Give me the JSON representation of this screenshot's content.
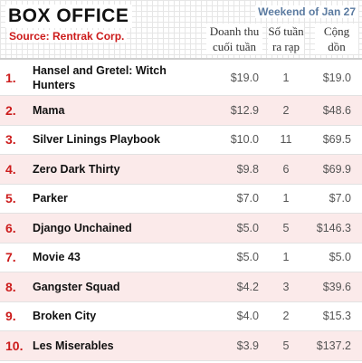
{
  "header": {
    "title": "BOX OFFICE",
    "source": "Source: Rentrak Corp.",
    "weekend": "Weekend of Jan 27",
    "columns": {
      "gross_line1": "Doanh thu",
      "gross_line2": "cuối tuần",
      "weeks_line1": "Số tuần",
      "weeks_line2": "ra rạp",
      "total_line1": "Cộng",
      "total_line2": "dồn"
    }
  },
  "rows": [
    {
      "rank": "1.",
      "movie": "Hansel and Gretel: Witch Hunters",
      "gross": "$19.0",
      "weeks": "1",
      "total": "$19.0"
    },
    {
      "rank": "2.",
      "movie": "Mama",
      "gross": "$12.9",
      "weeks": "2",
      "total": "$48.6"
    },
    {
      "rank": "3.",
      "movie": "Silver Linings Playbook",
      "gross": "$10.0",
      "weeks": "11",
      "total": "$69.5"
    },
    {
      "rank": "4.",
      "movie": "Zero Dark Thirty",
      "gross": "$9.8",
      "weeks": "6",
      "total": "$69.9"
    },
    {
      "rank": "5.",
      "movie": "Parker",
      "gross": "$7.0",
      "weeks": "1",
      "total": "$7.0"
    },
    {
      "rank": "6.",
      "movie": "Django Unchained",
      "gross": "$5.0",
      "weeks": "5",
      "total": "$146.3"
    },
    {
      "rank": "7.",
      "movie": "Movie 43",
      "gross": "$5.0",
      "weeks": "1",
      "total": "$5.0"
    },
    {
      "rank": "8.",
      "movie": "Gangster Squad",
      "gross": "$4.2",
      "weeks": "3",
      "total": "$39.6"
    },
    {
      "rank": "9.",
      "movie": "Broken City",
      "gross": "$4.0",
      "weeks": "2",
      "total": "$15.3"
    },
    {
      "rank": "10.",
      "movie": "Les Miserables",
      "gross": "$3.9",
      "weeks": "5",
      "total": "$137.2"
    }
  ],
  "colors": {
    "accent_red": "#cc1b1b",
    "row_alt": "#fbeaea",
    "weekend_blue": "#5a7aa0"
  }
}
